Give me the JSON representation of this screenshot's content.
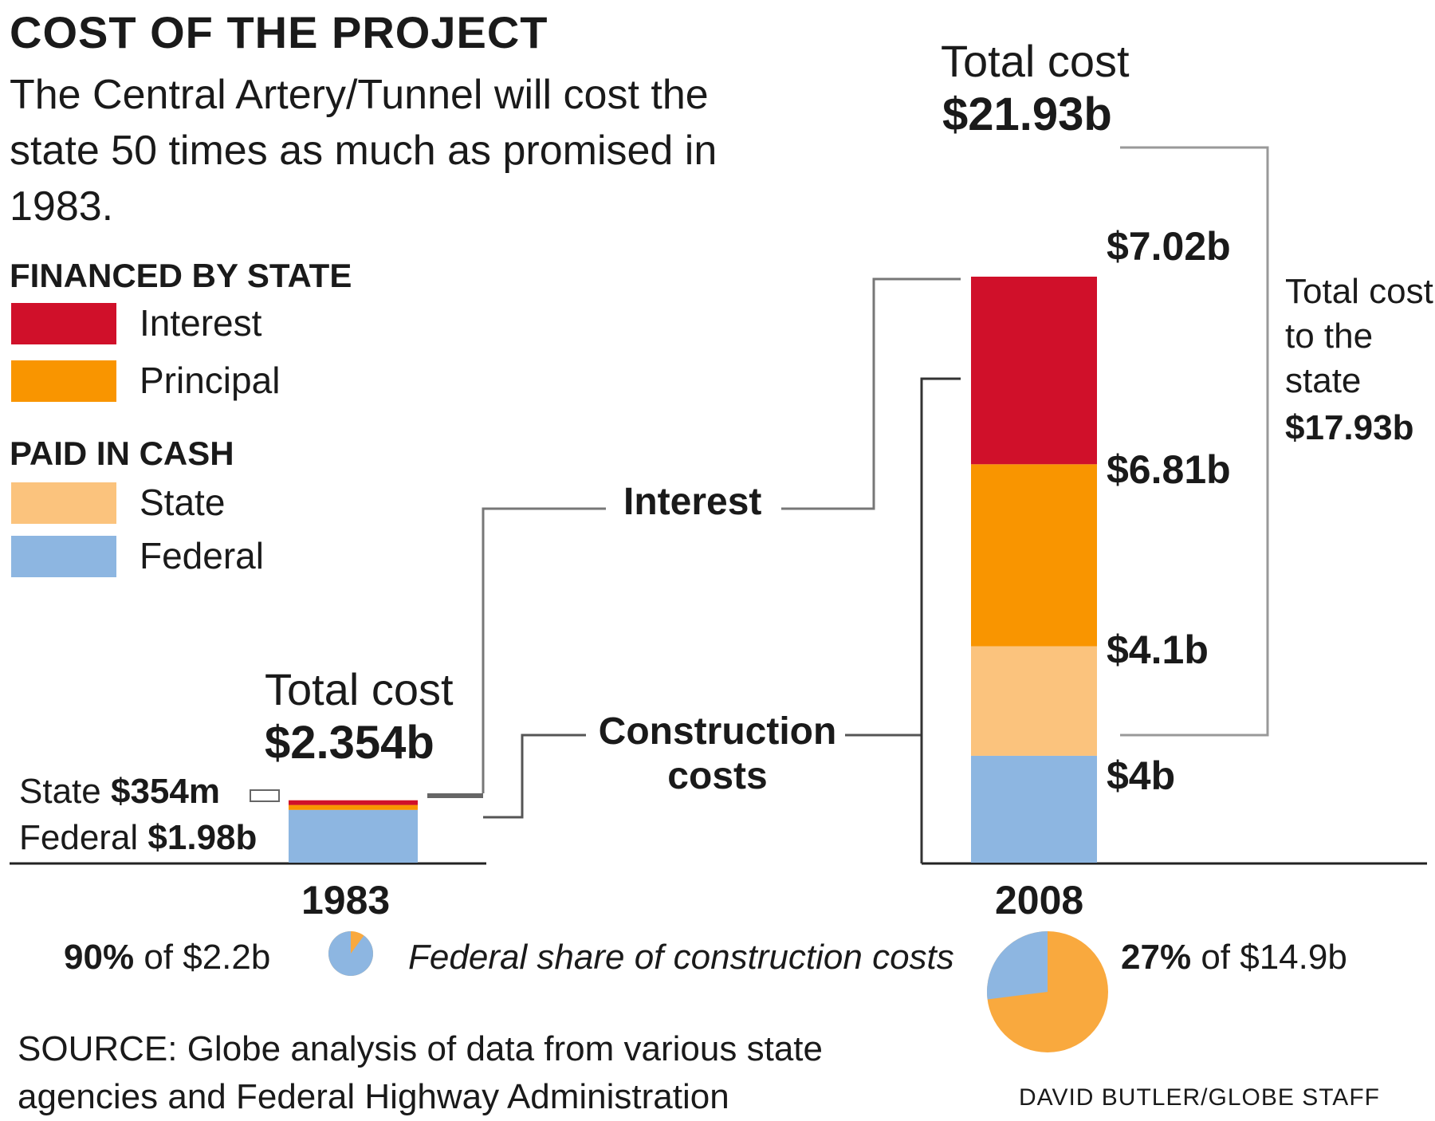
{
  "header": {
    "title": "COST OF THE PROJECT",
    "subtitle": "The Central Artery/Tunnel will cost the state 50 times as much as promised in 1983."
  },
  "legend": {
    "financed_title": "FINANCED BY STATE",
    "cash_title": "PAID IN CASH",
    "items": [
      {
        "label": "Interest",
        "color": "#d0102a"
      },
      {
        "label": "Principal",
        "color": "#f99500"
      },
      {
        "label": "State",
        "color": "#fbc37d"
      },
      {
        "label": "Federal",
        "color": "#8db6e1"
      }
    ]
  },
  "chart_data": {
    "type": "bar",
    "stacked": true,
    "categories": [
      "1983",
      "2008"
    ],
    "series": [
      {
        "name": "Federal",
        "values": [
          1.98,
          4.0
        ]
      },
      {
        "name": "State",
        "values": [
          0.354,
          4.1
        ]
      },
      {
        "name": "Principal",
        "values": [
          0.0,
          6.81
        ]
      },
      {
        "name": "Interest",
        "values": [
          0.0,
          7.02
        ]
      }
    ],
    "unit": "billions of dollars",
    "totals": [
      {
        "label": "Total cost",
        "value": "$2.354b"
      },
      {
        "label": "Total cost",
        "value": "$21.93b"
      }
    ],
    "labels_1983": {
      "state_prefix": "State",
      "state_value": "$354m",
      "federal_prefix": "Federal",
      "federal_value": "$1.98b"
    },
    "labels_2008": [
      "$7.02b",
      "$6.81b",
      "$4.1b",
      "$4b"
    ],
    "connectors": {
      "interest": "Interest",
      "construction": "Construction costs"
    },
    "state_total": {
      "label": "Total cost to the state",
      "value": "$17.93b"
    }
  },
  "pies": {
    "caption": "Federal share of construction costs",
    "left": {
      "pct": "90%",
      "of_text": "of $2.2b",
      "federal_fraction": 0.9
    },
    "right": {
      "pct": "27%",
      "of_text": "of $14.9b",
      "federal_fraction": 0.27
    }
  },
  "footer": {
    "source": "SOURCE: Globe analysis of data from various state agencies and Federal Highway Administration",
    "credit": "DAVID BUTLER/GLOBE STAFF"
  }
}
